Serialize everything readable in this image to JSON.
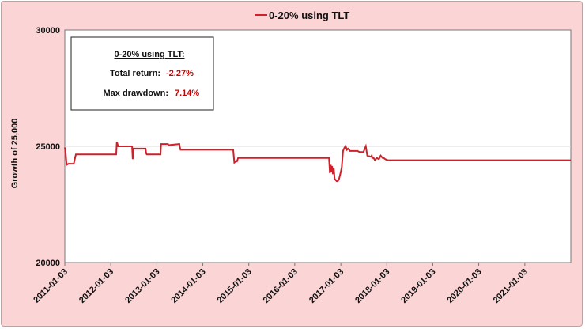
{
  "chart_data": {
    "type": "line",
    "title": "",
    "xlabel": "",
    "ylabel": "Growth of 25,000",
    "ylim": [
      20000,
      30000
    ],
    "yticks": [
      20000,
      25000,
      30000
    ],
    "xticks": [
      "2011-01-03",
      "2012-01-03",
      "2013-01-03",
      "2014-01-03",
      "2015-01-03",
      "2016-01-03",
      "2017-01-03",
      "2018-01-03",
      "2019-01-03",
      "2020-01-03",
      "2021-01-03"
    ],
    "xlim": [
      "2011-01-03",
      "2022-01-03"
    ],
    "grid": "horizontal",
    "legend": "top-center",
    "colors": {
      "series": "#d0202a",
      "plot_bg": "#ffffff",
      "frame_bg": "#fbd5d5",
      "value_text": "#cc0000"
    },
    "series": [
      {
        "name": "0-20% using TLT",
        "x": [
          "2011-01-03",
          "2011-01-10",
          "2011-01-17",
          "2011-02-01",
          "2011-02-08",
          "2011-03-15",
          "2011-04-01",
          "2012-02-15",
          "2012-02-20",
          "2012-03-01",
          "2012-06-20",
          "2012-06-25",
          "2012-07-01",
          "2012-10-05",
          "2012-10-10",
          "2012-10-15",
          "2013-02-01",
          "2013-02-05",
          "2013-02-10",
          "2013-04-01",
          "2013-04-05",
          "2013-07-01",
          "2013-07-05",
          "2013-07-10",
          "2014-01-05",
          "2014-09-01",
          "2014-09-10",
          "2014-09-20",
          "2014-10-01",
          "2014-10-10",
          "2016-10-01",
          "2016-10-08",
          "2016-10-15",
          "2016-10-20",
          "2016-10-25",
          "2016-11-01",
          "2016-11-08",
          "2016-11-15",
          "2016-12-01",
          "2016-12-10",
          "2016-12-20",
          "2017-01-03",
          "2017-01-10",
          "2017-01-20",
          "2017-02-01",
          "2017-02-10",
          "2017-02-20",
          "2017-03-01",
          "2017-03-10",
          "2017-03-15",
          "2017-03-25",
          "2017-05-01",
          "2017-05-15",
          "2017-06-01",
          "2017-07-01",
          "2017-07-20",
          "2017-08-01",
          "2017-09-01",
          "2017-09-05",
          "2017-09-10",
          "2017-09-20",
          "2017-10-01",
          "2017-10-15",
          "2017-11-01",
          "2017-11-15",
          "2017-12-01",
          "2017-12-10",
          "2017-12-20",
          "2018-01-10",
          "2018-02-10",
          "2018-02-20",
          "2022-01-03"
        ],
        "y": [
          24950,
          24700,
          24200,
          24250,
          24250,
          24250,
          24650,
          24650,
          25200,
          25000,
          25000,
          24450,
          24900,
          24900,
          24700,
          24650,
          24650,
          25100,
          25100,
          25100,
          25050,
          25100,
          24950,
          24850,
          24850,
          24850,
          24300,
          24350,
          24350,
          24500,
          24500,
          23850,
          24200,
          23900,
          24150,
          23800,
          24050,
          23600,
          23500,
          23500,
          23600,
          23900,
          24100,
          24800,
          24950,
          25000,
          24850,
          24900,
          24850,
          24800,
          24800,
          24800,
          24800,
          24750,
          24750,
          25000,
          24600,
          24550,
          24600,
          24500,
          24500,
          24400,
          24500,
          24450,
          24600,
          24500,
          24500,
          24450,
          24400,
          24400,
          24400,
          24400
        ]
      }
    ],
    "stats_box": {
      "title": "0-20% using TLT:",
      "total_return_label": "Total return:",
      "total_return_value": "-2.27%",
      "max_drawdown_label": "Max drawdown:",
      "max_drawdown_value": "7.14%"
    }
  }
}
